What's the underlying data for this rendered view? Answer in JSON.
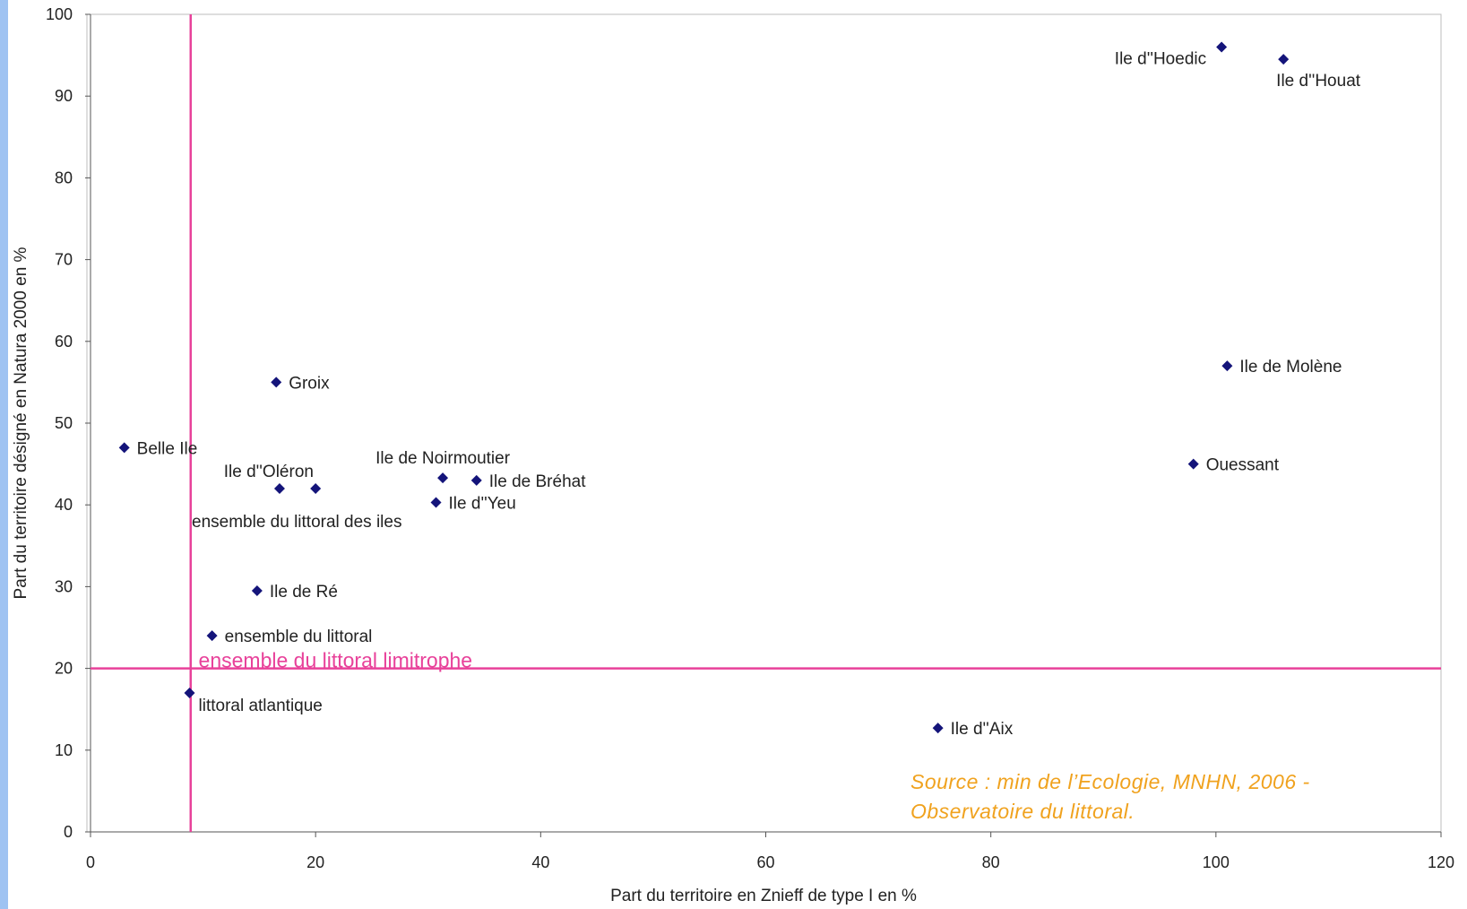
{
  "chart_data": {
    "type": "scatter",
    "title": "",
    "xlabel": "Part du territoire en Znieff de type I en %",
    "ylabel": "Part du territoire désigné en Natura 2000 en %",
    "xlim": [
      0,
      120
    ],
    "ylim": [
      0,
      100
    ],
    "x_ticks": [
      0,
      20,
      40,
      60,
      80,
      100,
      120
    ],
    "y_ticks": [
      0,
      10,
      20,
      30,
      40,
      50,
      60,
      70,
      80,
      90,
      100
    ],
    "grid": false,
    "marker_color": "#14147a",
    "reference_color": "#e8419a",
    "points": [
      {
        "label": "Ile d''Hoedic",
        "x": 100.5,
        "y": 96,
        "pos": "left"
      },
      {
        "label": "Ile d''Houat",
        "x": 106,
        "y": 94.5,
        "pos": "below"
      },
      {
        "label": "Ile de Molène",
        "x": 101,
        "y": 57,
        "pos": "right"
      },
      {
        "label": "Ouessant",
        "x": 98,
        "y": 45,
        "pos": "right"
      },
      {
        "label": "Groix",
        "x": 16.5,
        "y": 55,
        "pos": "right"
      },
      {
        "label": "Belle Ile",
        "x": 3,
        "y": 47,
        "pos": "right"
      },
      {
        "label": "Ile d''Oléron",
        "x": 16.8,
        "y": 42,
        "pos": "above-left"
      },
      {
        "label": "ensemble du littoral des iles",
        "x": 20,
        "y": 42,
        "pos": "below"
      },
      {
        "label": "Ile de Noirmoutier",
        "x": 31.3,
        "y": 43.3,
        "pos": "above"
      },
      {
        "label": "Ile de Bréhat",
        "x": 34.3,
        "y": 43,
        "pos": "right"
      },
      {
        "label": "Ile d''Yeu",
        "x": 30.7,
        "y": 40.3,
        "pos": "right"
      },
      {
        "label": "Ile de Ré",
        "x": 14.8,
        "y": 29.5,
        "pos": "right"
      },
      {
        "label": "ensemble du littoral",
        "x": 10.8,
        "y": 24,
        "pos": "right"
      },
      {
        "label": "littoral atlantique",
        "x": 8.8,
        "y": 17,
        "pos": "below-right"
      },
      {
        "label": "Ile d''Aix",
        "x": 75.3,
        "y": 12.7,
        "pos": "right"
      }
    ],
    "reference_lines": [
      {
        "axis": "x",
        "value": 8.9
      },
      {
        "axis": "y",
        "value": 20,
        "label": "ensemble du littoral limitrophe"
      }
    ],
    "source_note": [
      "Source : min de l’Ecologie, MNHN, 2006 -",
      "Observatoire du littoral."
    ]
  }
}
